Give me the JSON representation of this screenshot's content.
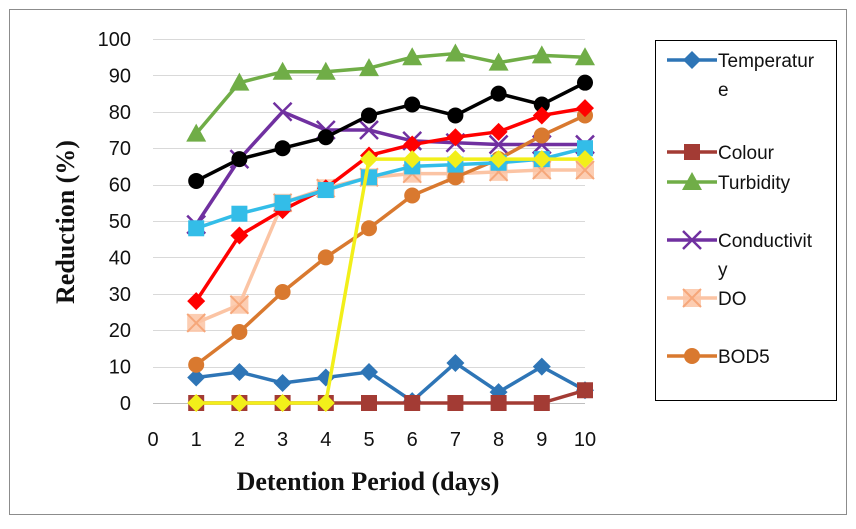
{
  "chart_data": {
    "type": "line",
    "title": "",
    "xlabel": "Detention Period (days)",
    "ylabel": "Reduction (%)",
    "xlim": [
      0,
      10
    ],
    "ylim": [
      0,
      100
    ],
    "x_ticks": [
      0,
      1,
      2,
      3,
      4,
      5,
      6,
      7,
      8,
      9,
      10
    ],
    "y_ticks": [
      0,
      10,
      20,
      30,
      40,
      50,
      60,
      70,
      80,
      90,
      100
    ],
    "grid": true,
    "legend_position": "right",
    "legend_entries": [
      {
        "name_lines": [
          "Temperatur",
          "e"
        ],
        "series_index": 0
      },
      {
        "name_lines": [
          "Colour"
        ],
        "series_index": 1
      },
      {
        "name_lines": [
          "Turbidity"
        ],
        "series_index": 2
      },
      {
        "name_lines": [
          "Conductivit",
          "y"
        ],
        "series_index": 3
      },
      {
        "name_lines": [
          "DO"
        ],
        "series_index": 4
      },
      {
        "name_lines": [
          "BOD5"
        ],
        "series_index": 5
      }
    ],
    "series": [
      {
        "name": "Temperature",
        "color": "#2e75b6",
        "marker": "diamond",
        "x": [
          1,
          2,
          3,
          4,
          5,
          6,
          7,
          8,
          9,
          10
        ],
        "y": [
          7,
          8.5,
          5.5,
          7,
          8.5,
          0.5,
          11,
          3,
          10,
          3.5
        ]
      },
      {
        "name": "Colour",
        "color": "#a33b34",
        "marker": "square",
        "x": [
          1,
          2,
          3,
          4,
          5,
          6,
          7,
          8,
          9,
          10
        ],
        "y": [
          0,
          0,
          0,
          0,
          0,
          0,
          0,
          0,
          0,
          3.5
        ]
      },
      {
        "name": "Turbidity",
        "color": "#70ad47",
        "marker": "triangle",
        "x": [
          1,
          2,
          3,
          4,
          5,
          6,
          7,
          8,
          9,
          10
        ],
        "y": [
          74,
          88,
          91,
          91,
          92,
          95,
          96,
          93.5,
          95.5,
          95
        ]
      },
      {
        "name": "Conductivity",
        "color": "#7030a0",
        "marker": "x",
        "x": [
          1,
          2,
          3,
          4,
          5,
          6,
          7,
          8,
          9,
          10
        ],
        "y": [
          49,
          67,
          80,
          75,
          75,
          72,
          71.5,
          71,
          71,
          71
        ]
      },
      {
        "name": "DO",
        "color": "#fbc4a4",
        "marker": "square-x",
        "x": [
          1,
          2,
          3,
          4,
          5,
          6,
          7,
          8,
          9,
          10
        ],
        "y": [
          22,
          27,
          55,
          59,
          62,
          63,
          63,
          63.5,
          64,
          64
        ]
      },
      {
        "name": "BOD5",
        "color": "#d9792f",
        "marker": "circle",
        "x": [
          1,
          2,
          3,
          4,
          5,
          6,
          7,
          8,
          9,
          10
        ],
        "y": [
          10.5,
          19.5,
          30.5,
          40,
          48,
          57,
          62,
          67,
          73.5,
          79
        ]
      },
      {
        "color": "#000000",
        "marker": "circle",
        "x": [
          1,
          2,
          3,
          4,
          5,
          6,
          7,
          8,
          9,
          10
        ],
        "y": [
          61,
          67,
          70,
          73,
          79,
          82,
          79,
          85,
          82,
          88
        ]
      },
      {
        "color": "#ff0000",
        "marker": "diamond",
        "x": [
          1,
          2,
          3,
          4,
          5,
          6,
          7,
          8,
          9,
          10
        ],
        "y": [
          28,
          46,
          53,
          59,
          68,
          71,
          73,
          74.5,
          79,
          81
        ]
      },
      {
        "color": "#33bde8",
        "marker": "square",
        "x": [
          1,
          2,
          3,
          4,
          5,
          6,
          7,
          8,
          9,
          10
        ],
        "y": [
          48,
          52,
          55,
          58.5,
          62,
          65,
          65.5,
          66,
          67,
          70
        ]
      },
      {
        "color": "#f2ef1a",
        "marker": "diamond",
        "x": [
          1,
          2,
          3,
          4,
          5,
          6,
          7,
          8,
          9,
          10
        ],
        "y": [
          0,
          0,
          0,
          0,
          67,
          67,
          67,
          67,
          67,
          67
        ]
      }
    ]
  }
}
